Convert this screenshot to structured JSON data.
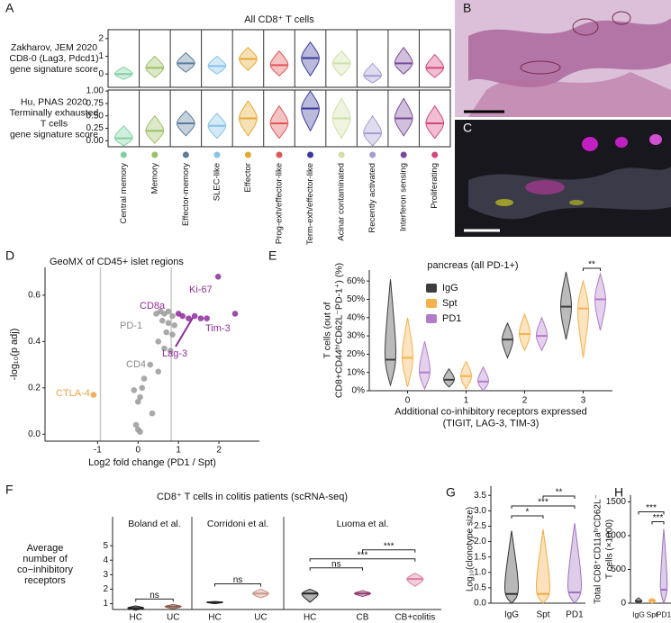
{
  "chart_data": [
    {
      "type": "violin_rows",
      "panel_label": "A",
      "title": "All CD8⁺ T cells",
      "categories": [
        "Central memory",
        "Memory",
        "Effector-memory",
        "SLEC-like",
        "Effector",
        "Prog-exh/effector-like",
        "Term-exh/effector-like",
        "Acinar contaminated",
        "Recently activated",
        "Interferon sensing",
        "Proliferating"
      ],
      "colors": [
        "#7fd0a0",
        "#9cc064",
        "#5b7c9c",
        "#86c2ea",
        "#e6a92e",
        "#e05656",
        "#3a3a9e",
        "#cfe0a6",
        "#a59ad2",
        "#7a4a9a",
        "#d4467f"
      ],
      "rows": [
        {
          "label_lines": [
            "Zakharov, JEM 2020",
            "CD8-0 (Lag3, Pdcd1)",
            "gene signature score"
          ],
          "ylim": [
            -0.75,
            2.5
          ],
          "yticks": [
            0,
            1,
            2
          ],
          "values": [
            0,
            0.35,
            0.6,
            0.45,
            0.85,
            0.5,
            0.9,
            0.6,
            -0.1,
            0.6,
            0.35
          ],
          "low": [
            -0.3,
            -0.2,
            0.1,
            0,
            0.2,
            -0.1,
            -0.1,
            -0.1,
            -0.5,
            0,
            -0.2
          ],
          "high": [
            0.4,
            1.0,
            1.2,
            1.0,
            1.5,
            1.3,
            1.8,
            1.3,
            0.6,
            1.5,
            1.1
          ]
        },
        {
          "label_lines": [
            "Hu, PNAS 2020",
            "Terminally exhausted",
            "T cells",
            "gene signature score"
          ],
          "ylim": [
            -0.12,
            1.02
          ],
          "yticks": [
            {
              "value": 0,
              "label": "0.00"
            },
            {
              "value": 0.25,
              "label": "0.25"
            },
            {
              "value": 0.5,
              "label": "0.50"
            },
            {
              "value": 0.75,
              "label": "0.75"
            },
            {
              "value": 1,
              "label": "1.00"
            }
          ],
          "values": [
            0.05,
            0.2,
            0.35,
            0.3,
            0.45,
            0.35,
            0.65,
            0.45,
            0.15,
            0.45,
            0.35
          ],
          "low": [
            -0.1,
            -0.05,
            0.1,
            0.05,
            0.1,
            0.05,
            0.2,
            0.05,
            -0.1,
            0.1,
            0.05
          ],
          "high": [
            0.3,
            0.5,
            0.6,
            0.55,
            0.8,
            0.7,
            1.0,
            0.85,
            0.5,
            0.85,
            0.7
          ]
        }
      ]
    },
    {
      "type": "scatter",
      "panel_label": "D",
      "title": "GeoMX of CD45+ islet regions",
      "xlabel": "Log2 fold change (PD1 / Spt)",
      "ylabel": "-log₁₀(p adj)",
      "xlim": [
        -2.3,
        3.0
      ],
      "xticks": [
        -1,
        0,
        1,
        2
      ],
      "ylim": [
        -0.03,
        0.72
      ],
      "yticks": [
        {
          "value": 0,
          "label": "0.0"
        },
        0.2,
        0.4,
        0.6
      ],
      "thresholds": [
        -0.93,
        0.82
      ],
      "x": [
        0.45,
        0.55,
        0.65,
        0.75,
        0.85,
        0.6,
        0.75,
        0.9,
        0.7,
        0.85,
        0.5,
        0.65,
        0.8,
        0.3,
        0.5,
        0.15,
        -0.1,
        0.1,
        0.05,
        0.0,
        -0.05,
        0.0,
        0.05,
        0.35,
        1.0,
        1.1,
        1.25,
        1.4,
        1.55,
        1.7,
        1.98,
        2.4,
        -1.1
      ],
      "y": [
        0.52,
        0.53,
        0.52,
        0.53,
        0.51,
        0.49,
        0.48,
        0.47,
        0.44,
        0.43,
        0.4,
        0.37,
        0.36,
        0.3,
        0.27,
        0.24,
        0.19,
        0.2,
        0.16,
        0.14,
        0.04,
        0.02,
        0.01,
        0.09,
        0.52,
        0.51,
        0.5,
        0.51,
        0.5,
        0.5,
        0.68,
        0.52,
        0.17
      ],
      "point_colors": [
        "#9a9a9a",
        "#9a9a9a",
        "#9a9a9a",
        "#9a9a9a",
        "#9a9a9a",
        "#9a9a9a",
        "#9a9a9a",
        "#9a9a9a",
        "#9a9a9a",
        "#9a9a9a",
        "#9a9a9a",
        "#9a9a9a",
        "#9a9a9a",
        "#9a9a9a",
        "#9a9a9a",
        "#9a9a9a",
        "#9a9a9a",
        "#9a9a9a",
        "#9a9a9a",
        "#9a9a9a",
        "#9a9a9a",
        "#9a9a9a",
        "#9a9a9a",
        "#9a9a9a",
        "#8e2c9e",
        "#8e2c9e",
        "#8e2c9e",
        "#8e2c9e",
        "#8e2c9e",
        "#8e2c9e",
        "#8e2c9e",
        "#8e2c9e",
        "#f0a040"
      ],
      "annotations": [
        {
          "text": "CTLA-4",
          "color": "#f0a040"
        },
        {
          "text": "CD8a",
          "color": "#8e2c9e"
        },
        {
          "text": "Ki-67",
          "color": "#8e2c9e"
        },
        {
          "text": "PD-1",
          "color": "#8a8a8a"
        },
        {
          "text": "Tim-3",
          "color": "#8e2c9e"
        },
        {
          "text": "Lag-3",
          "color": "#8e2c9e"
        },
        {
          "text": "CD4",
          "color": "#8a8a8a"
        }
      ]
    },
    {
      "type": "grouped_violin",
      "panel_label": "E",
      "title": "pancreas (all PD-1+)",
      "ylabel_lines": [
        "T cells (out of",
        "CD8+CD44ʰⁱCD62L⁻PD-1⁺) (%)"
      ],
      "xlabel_lines": [
        "Additional co-inhibitory receptors expressed",
        "(TIGIT, LAG-3, TIM-3)"
      ],
      "categories": [
        "0",
        "1",
        "2",
        "3"
      ],
      "ylim": [
        0,
        66
      ],
      "yticks": [
        {
          "value": 0,
          "label": "0%"
        },
        {
          "value": 10,
          "label": "10%"
        },
        {
          "value": 20,
          "label": "20%"
        },
        {
          "value": 30,
          "label": "30%"
        },
        {
          "value": 40,
          "label": "40%"
        },
        {
          "value": 50,
          "label": "50%"
        },
        {
          "value": 60,
          "label": "60%"
        }
      ],
      "series": [
        {
          "name": "IgG",
          "color": "#3d3d3d",
          "values": [
            17,
            6,
            28,
            46
          ],
          "low": [
            3,
            2,
            18,
            28
          ],
          "high": [
            61,
            12,
            37,
            65
          ]
        },
        {
          "name": "Spt",
          "color": "#f5b14c",
          "values": [
            18,
            8,
            31,
            45
          ],
          "low": [
            2,
            1,
            22,
            18
          ],
          "high": [
            40,
            16,
            42,
            60
          ]
        },
        {
          "name": "PD1",
          "color": "#b27cc9",
          "values": [
            10,
            5,
            30,
            50
          ],
          "low": [
            1,
            0,
            22,
            33
          ],
          "high": [
            27,
            13,
            40,
            64
          ]
        }
      ],
      "comparisons": [
        {
          "category": 3,
          "between": [
            1,
            2
          ],
          "label": "**"
        }
      ]
    },
    {
      "type": "study_violin",
      "panel_label": "F",
      "title": "CD8⁺ T cells in colitis patients (scRNA-seq)",
      "ylabel_lines": [
        "Average",
        "number of",
        "co−inhibitory",
        "receptors"
      ],
      "ylim": [
        0.6,
        6.0
      ],
      "yticks": [
        1,
        2,
        3,
        4,
        5
      ],
      "studies": [
        {
          "name": "Boland et al.",
          "categories": [
            "HC",
            "UC"
          ],
          "colors": [
            "#222222",
            "#8b5a4e"
          ],
          "values": [
            0.7,
            0.8
          ],
          "low": [
            0.55,
            0.65
          ],
          "high": [
            0.85,
            0.95
          ],
          "comparisons": [
            {
              "between": [
                0,
                1
              ],
              "label": "ns"
            }
          ]
        },
        {
          "name": "Corridoni et al.",
          "categories": [
            "HC",
            "UC"
          ],
          "colors": [
            "#222222",
            "#c9978a"
          ],
          "values": [
            1.1,
            1.7
          ],
          "low": [
            1.0,
            1.4
          ],
          "high": [
            1.15,
            2.0
          ],
          "comparisons": [
            {
              "between": [
                0,
                1
              ],
              "label": "ns"
            }
          ]
        },
        {
          "name": "Luoma et al.",
          "categories": [
            "HC",
            "CB",
            "CB+colitis"
          ],
          "colors": [
            "#222222",
            "#8e3a6e",
            "#e0799a"
          ],
          "values": [
            1.7,
            1.7,
            2.7
          ],
          "low": [
            1.1,
            1.5,
            2.2
          ],
          "high": [
            2.0,
            1.9,
            3.1
          ],
          "comparisons": [
            {
              "between": [
                0,
                1
              ],
              "label": "ns"
            },
            {
              "between": [
                0,
                2
              ],
              "label": "***"
            },
            {
              "between": [
                1,
                2
              ],
              "label": "***"
            }
          ]
        }
      ]
    },
    {
      "type": "violin",
      "panel_label": "G",
      "ylabel_lines": [
        "Log₁₀(clonotype size)"
      ],
      "categories": [
        "IgG",
        "Spt",
        "PD1"
      ],
      "colors": [
        "#333333",
        "#f4a940",
        "#a070c0"
      ],
      "values": [
        0.3,
        0.3,
        0.35
      ],
      "low": [
        0,
        0,
        0
      ],
      "high": [
        2.35,
        2.4,
        2.6
      ],
      "ylim": [
        0,
        3.8
      ],
      "yticks": [
        {
          "value": 0,
          "label": "0.0"
        },
        0.5,
        {
          "value": 1,
          "label": "1.0"
        },
        1.5,
        {
          "value": 2,
          "label": "2.0"
        },
        2.5,
        {
          "value": 3,
          "label": "3.0"
        },
        3.5
      ],
      "comparisons": [
        {
          "between": [
            0,
            1
          ],
          "label": "*"
        },
        {
          "between": [
            0,
            2
          ],
          "label": "***"
        },
        {
          "between": [
            1,
            2
          ],
          "label": "**"
        }
      ]
    },
    {
      "type": "violin",
      "panel_label": "H",
      "ylabel_lines": [
        "Total CD8⁺CD11aʰⁱCD62L⁻",
        "T cells (×1000)"
      ],
      "categories": [
        "IgG",
        "Spt",
        "PD1"
      ],
      "colors": [
        "#333333",
        "#f4a940",
        "#a070c0"
      ],
      "values": [
        30,
        40,
        200
      ],
      "low": [
        0,
        0,
        0
      ],
      "high": [
        80,
        70,
        1100
      ],
      "ylim": [
        0,
        1600
      ],
      "yticks": [
        0,
        500,
        1000,
        1500
      ],
      "comparisons": [
        {
          "between": [
            1,
            2
          ],
          "label": "***"
        },
        {
          "between": [
            0,
            2
          ],
          "label": "***"
        }
      ]
    }
  ],
  "images": [
    {
      "label": "B"
    },
    {
      "label": "C"
    }
  ]
}
